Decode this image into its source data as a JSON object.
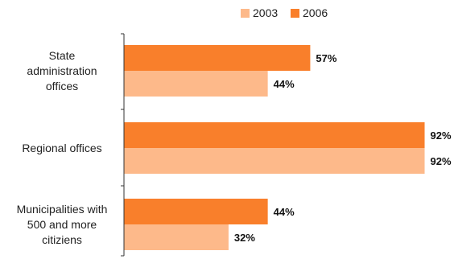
{
  "chart_data": {
    "type": "bar",
    "orientation": "horizontal",
    "categories": [
      [
        "State",
        "administration",
        "offices"
      ],
      [
        "Regional offices"
      ],
      [
        "Municipalities with",
        "500 and more",
        "citiziens"
      ]
    ],
    "series": [
      {
        "name": "2003",
        "color": "#FDB98A",
        "values": [
          44,
          92,
          32
        ],
        "labels": [
          "44%",
          "92%",
          "32%"
        ]
      },
      {
        "name": "2006",
        "color": "#F97F2B",
        "values": [
          57,
          92,
          44
        ],
        "labels": [
          "57%",
          "92%",
          "44%"
        ]
      }
    ],
    "xlim": [
      0,
      100
    ],
    "grid": false,
    "legend_position": "top",
    "data_labels": true
  }
}
